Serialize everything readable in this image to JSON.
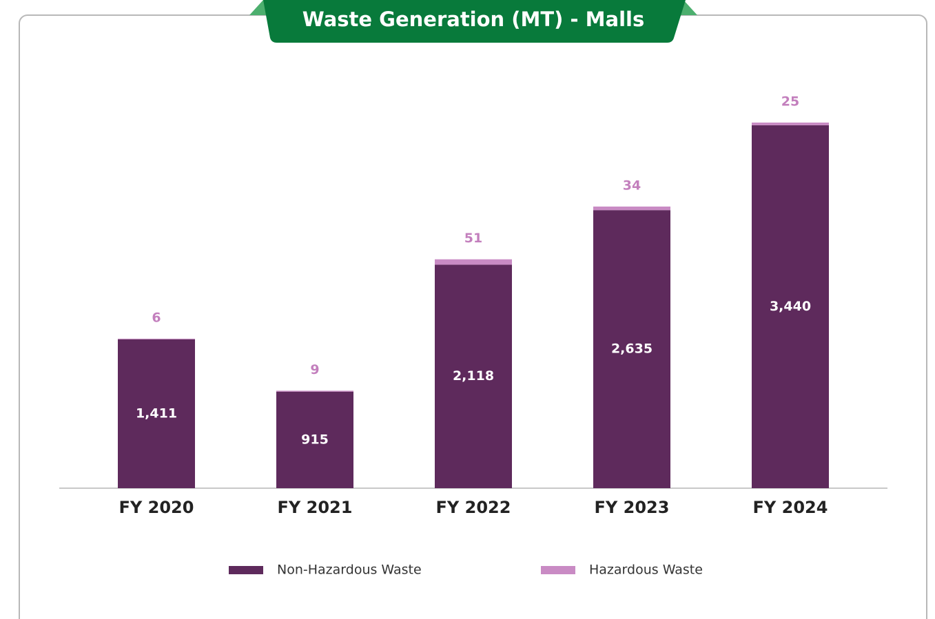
{
  "chart_data": {
    "type": "stacked-bar",
    "title": "Waste Generation (MT) - Malls",
    "categories": [
      "FY 2020",
      "FY 2021",
      "FY 2022",
      "FY 2023",
      "FY 2024"
    ],
    "series": [
      {
        "name": "Non-Hazardous Waste",
        "color": "#5e2a5c",
        "values": [
          1411,
          915,
          2118,
          2635,
          3440
        ],
        "value_labels": [
          "1,411",
          "915",
          "2,118",
          "2,635",
          "3,440"
        ]
      },
      {
        "name": "Hazardous Waste",
        "color": "#c98bc4",
        "values": [
          6,
          9,
          51,
          34,
          25
        ]
      }
    ]
  }
}
